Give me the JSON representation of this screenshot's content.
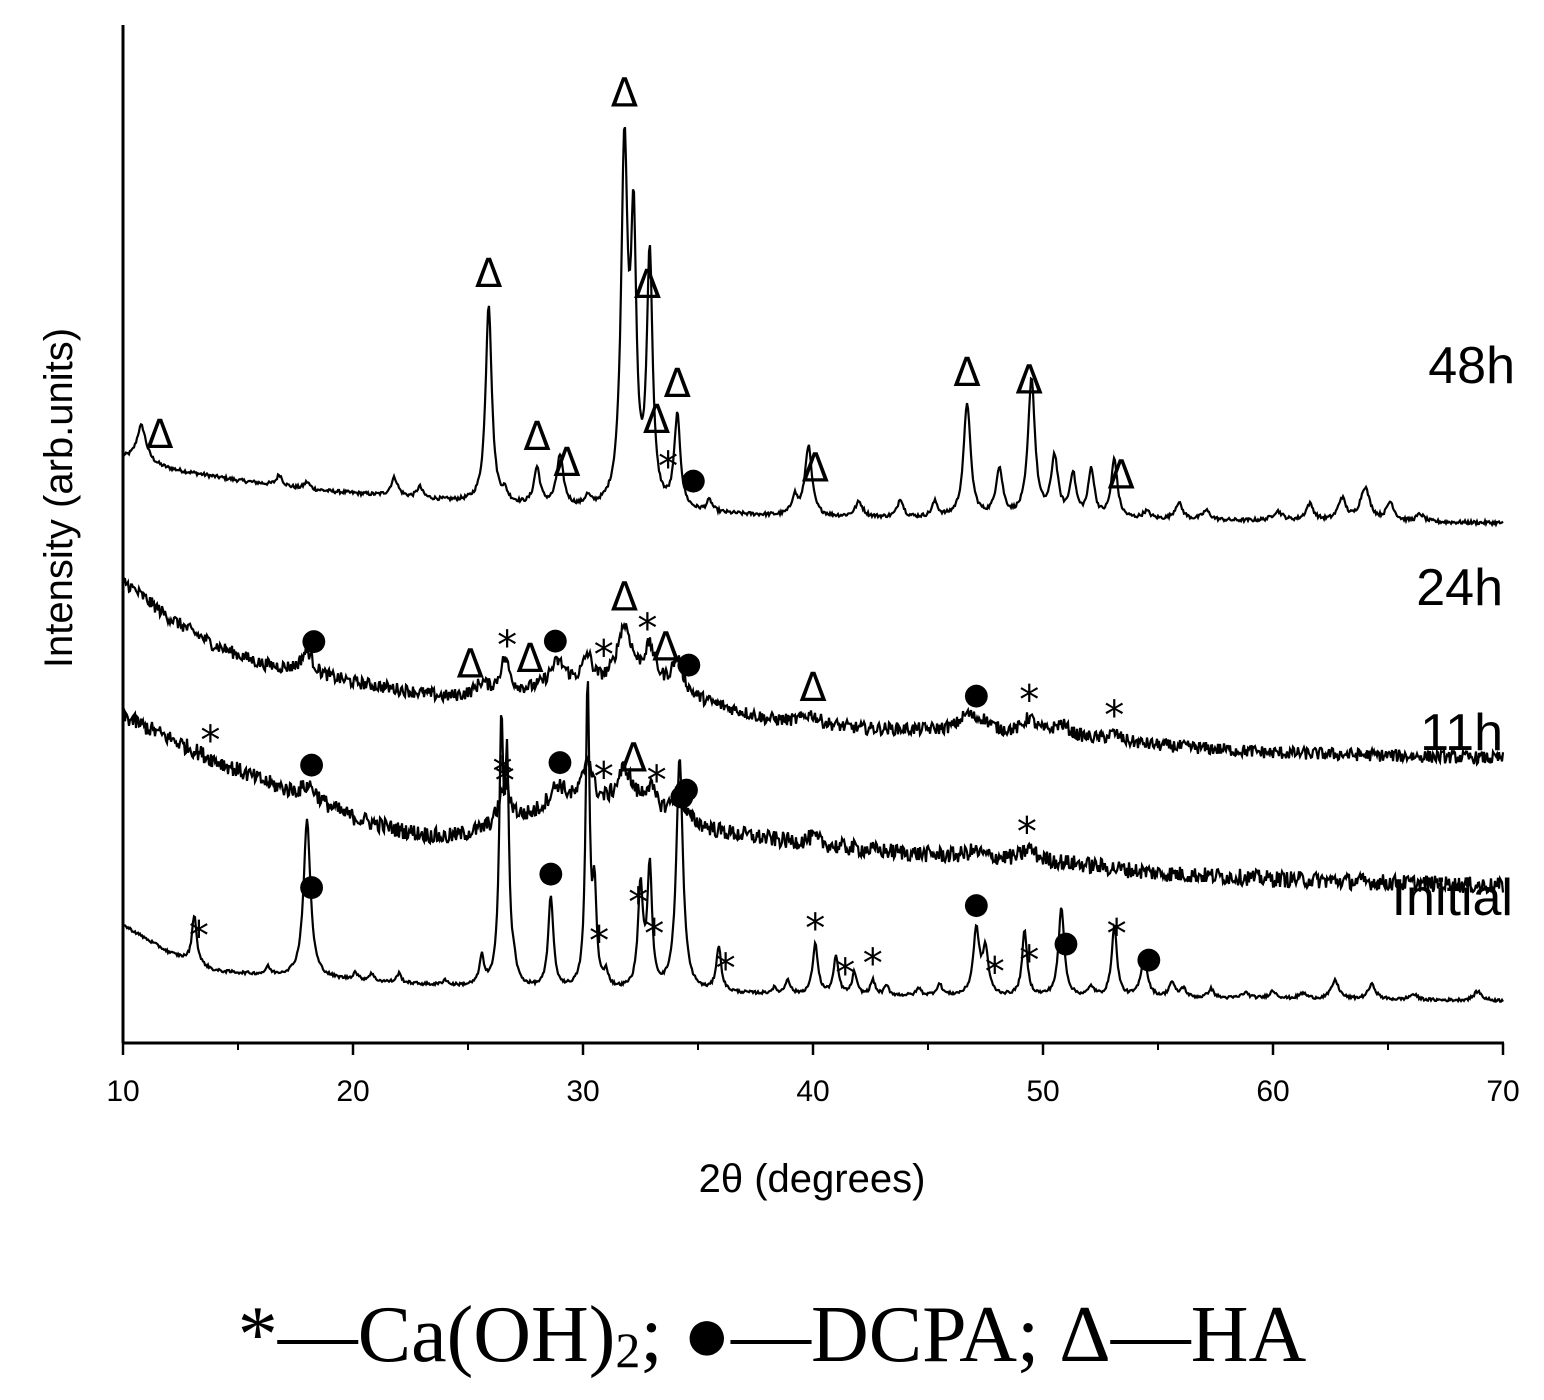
{
  "chart_data": {
    "type": "line",
    "xlabel": "2θ (degrees)",
    "ylabel": "Intensity (arb.units)",
    "xlim": [
      10,
      70
    ],
    "xticks": [
      10,
      20,
      30,
      40,
      50,
      60,
      70
    ],
    "grid": false,
    "series": [
      {
        "name": "48h",
        "noise": 0.1,
        "baseline": [
          [
            10,
            0.2
          ],
          [
            12,
            -0.4
          ],
          [
            15,
            -1.0
          ],
          [
            18,
            -1.5
          ],
          [
            22,
            -1.9
          ],
          [
            26,
            -2.3
          ],
          [
            30,
            -2.6
          ],
          [
            35,
            -2.8
          ],
          [
            40,
            -3.0
          ],
          [
            50,
            -3.1
          ],
          [
            60,
            -3.2
          ],
          [
            70,
            -3.3
          ]
        ],
        "peaks": [
          [
            10.8,
            2.0,
            0.25
          ],
          [
            16.8,
            0.6,
            0.15
          ],
          [
            18.0,
            0.4,
            0.15
          ],
          [
            21.8,
            1.0,
            0.18
          ],
          [
            22.9,
            0.6,
            0.15
          ],
          [
            25.9,
            10.8,
            0.16
          ],
          [
            26.6,
            0.5,
            0.15
          ],
          [
            28.0,
            2.0,
            0.16
          ],
          [
            29.0,
            2.7,
            0.18
          ],
          [
            30.2,
            0.5,
            0.15
          ],
          [
            31.8,
            19.2,
            0.17
          ],
          [
            32.2,
            14.0,
            0.14
          ],
          [
            32.9,
            13.5,
            0.15
          ],
          [
            34.1,
            5.0,
            0.16
          ],
          [
            35.5,
            0.6,
            0.15
          ],
          [
            39.2,
            1.0,
            0.15
          ],
          [
            39.8,
            3.8,
            0.18
          ],
          [
            42.0,
            0.8,
            0.2
          ],
          [
            43.8,
            1.0,
            0.15
          ],
          [
            45.3,
            0.8,
            0.15
          ],
          [
            46.7,
            6.2,
            0.18
          ],
          [
            48.1,
            2.6,
            0.18
          ],
          [
            49.5,
            7.5,
            0.18
          ],
          [
            50.5,
            3.2,
            0.18
          ],
          [
            51.3,
            2.3,
            0.16
          ],
          [
            52.1,
            2.6,
            0.16
          ],
          [
            53.1,
            3.2,
            0.16
          ],
          [
            54.5,
            0.4,
            0.2
          ],
          [
            55.9,
            0.9,
            0.2
          ],
          [
            57.1,
            0.5,
            0.2
          ],
          [
            60.2,
            0.5,
            0.25
          ],
          [
            61.6,
            0.9,
            0.2
          ],
          [
            63.0,
            1.2,
            0.2
          ],
          [
            64.0,
            1.8,
            0.25
          ],
          [
            65.1,
            1.0,
            0.2
          ],
          [
            66.4,
            0.4,
            0.2
          ]
        ]
      },
      {
        "name": "24h",
        "noise": 0.35,
        "baseline": [
          [
            10,
            0.5
          ],
          [
            12,
            -1.5
          ],
          [
            14,
            -3.0
          ],
          [
            16,
            -4.0
          ],
          [
            18,
            -4.5
          ],
          [
            20,
            -5.0
          ],
          [
            24,
            -5.8
          ],
          [
            27,
            -5.6
          ],
          [
            30,
            -5.3
          ],
          [
            33,
            -5.3
          ],
          [
            35,
            -6.0
          ],
          [
            38,
            -7.0
          ],
          [
            42,
            -7.5
          ],
          [
            46,
            -7.6
          ],
          [
            50,
            -7.8
          ],
          [
            55,
            -8.4
          ],
          [
            60,
            -8.8
          ],
          [
            70,
            -9.1
          ]
        ],
        "peaks": [
          [
            18.0,
            1.2,
            0.3
          ],
          [
            25.6,
            0.6,
            0.3
          ],
          [
            26.6,
            1.8,
            0.25
          ],
          [
            28.9,
            1.4,
            0.45
          ],
          [
            30.2,
            1.5,
            0.25
          ],
          [
            31.8,
            3.2,
            0.4
          ],
          [
            32.9,
            1.9,
            0.3
          ],
          [
            34.1,
            1.8,
            0.3
          ],
          [
            39.9,
            0.5,
            0.4
          ],
          [
            46.7,
            0.8,
            0.4
          ],
          [
            47.4,
            0.5,
            0.4
          ],
          [
            49.4,
            0.8,
            0.3
          ],
          [
            50.8,
            0.6,
            0.4
          ],
          [
            53.1,
            0.4,
            0.3
          ]
        ]
      },
      {
        "name": "11h",
        "noise": 0.45,
        "baseline": [
          [
            10,
            0.0
          ],
          [
            12,
            -1.2
          ],
          [
            14,
            -2.4
          ],
          [
            16,
            -3.5
          ],
          [
            18,
            -4.5
          ],
          [
            20,
            -5.5
          ],
          [
            22,
            -6.2
          ],
          [
            24,
            -6.6
          ],
          [
            26,
            -6.2
          ],
          [
            28,
            -5.5
          ],
          [
            30,
            -5.0
          ],
          [
            32,
            -5.0
          ],
          [
            34,
            -5.6
          ],
          [
            36,
            -6.3
          ],
          [
            40,
            -7.0
          ],
          [
            45,
            -7.5
          ],
          [
            50,
            -7.8
          ],
          [
            55,
            -8.5
          ],
          [
            60,
            -8.8
          ],
          [
            70,
            -9.2
          ]
        ],
        "peaks": [
          [
            18.1,
            0.8,
            0.4
          ],
          [
            26.6,
            2.2,
            0.3
          ],
          [
            28.9,
            1.4,
            0.5
          ],
          [
            30.2,
            2.5,
            0.25
          ],
          [
            31.8,
            2.0,
            0.4
          ],
          [
            32.9,
            1.2,
            0.3
          ],
          [
            34.1,
            1.3,
            0.3
          ],
          [
            40.0,
            0.4,
            0.4
          ],
          [
            47.0,
            0.3,
            0.4
          ],
          [
            49.4,
            0.6,
            0.3
          ]
        ]
      },
      {
        "name": "Initial",
        "noise": 0.08,
        "baseline": [
          [
            10,
            0.0
          ],
          [
            12,
            -1.5
          ],
          [
            14,
            -2.5
          ],
          [
            16,
            -2.7
          ],
          [
            20,
            -3.0
          ],
          [
            24,
            -3.3
          ],
          [
            28,
            -3.5
          ],
          [
            32,
            -3.6
          ],
          [
            36,
            -3.7
          ],
          [
            40,
            -3.8
          ],
          [
            50,
            -3.9
          ],
          [
            60,
            -4.0
          ],
          [
            70,
            -4.1
          ]
        ],
        "peaks": [
          [
            13.1,
            2.6,
            0.12
          ],
          [
            16.3,
            0.4,
            0.12
          ],
          [
            18.0,
            8.5,
            0.18
          ],
          [
            20.1,
            0.4,
            0.12
          ],
          [
            20.8,
            0.4,
            0.12
          ],
          [
            22.0,
            0.5,
            0.12
          ],
          [
            24.0,
            0.3,
            0.12
          ],
          [
            25.6,
            1.5,
            0.12
          ],
          [
            26.45,
            13.5,
            0.11
          ],
          [
            26.7,
            11.0,
            0.1
          ],
          [
            27.0,
            0.8,
            0.12
          ],
          [
            28.6,
            5.0,
            0.13
          ],
          [
            30.2,
            16.5,
            0.1
          ],
          [
            30.5,
            5.0,
            0.1
          ],
          [
            31.0,
            0.8,
            0.12
          ],
          [
            32.5,
            5.5,
            0.13
          ],
          [
            32.9,
            6.5,
            0.12
          ],
          [
            34.2,
            12.6,
            0.17
          ],
          [
            35.9,
            2.4,
            0.13
          ],
          [
            38.3,
            0.3,
            0.12
          ],
          [
            38.9,
            0.8,
            0.12
          ],
          [
            40.1,
            2.7,
            0.14
          ],
          [
            41.0,
            2.0,
            0.13
          ],
          [
            41.8,
            1.2,
            0.12
          ],
          [
            42.6,
            0.8,
            0.12
          ],
          [
            43.2,
            0.5,
            0.12
          ],
          [
            44.6,
            0.4,
            0.12
          ],
          [
            45.5,
            0.6,
            0.15
          ],
          [
            47.1,
            3.5,
            0.16
          ],
          [
            47.5,
            2.4,
            0.15
          ],
          [
            49.2,
            3.5,
            0.13
          ],
          [
            50.8,
            4.8,
            0.15
          ],
          [
            52.1,
            0.5,
            0.15
          ],
          [
            53.1,
            3.8,
            0.14
          ],
          [
            54.4,
            2.0,
            0.18
          ],
          [
            55.6,
            0.8,
            0.15
          ],
          [
            56.1,
            0.5,
            0.15
          ],
          [
            57.3,
            0.5,
            0.15
          ],
          [
            58.8,
            0.3,
            0.2
          ],
          [
            60.0,
            0.4,
            0.2
          ],
          [
            61.3,
            0.3,
            0.2
          ],
          [
            62.7,
            1.0,
            0.2
          ],
          [
            64.3,
            0.8,
            0.2
          ],
          [
            66.1,
            0.3,
            0.2
          ],
          [
            68.9,
            0.5,
            0.2
          ]
        ]
      }
    ],
    "markers": {
      "48h": [
        {
          "symbol": "Δ",
          "x": 11.6
        },
        {
          "symbol": "Δ",
          "x": 25.9
        },
        {
          "symbol": "Δ",
          "x": 28.0
        },
        {
          "symbol": "Δ",
          "x": 29.3
        },
        {
          "symbol": "Δ",
          "x": 31.8
        },
        {
          "symbol": "Δ",
          "x": 32.8
        },
        {
          "symbol": "Δ",
          "x": 33.2
        },
        {
          "symbol": "Δ",
          "x": 34.1
        },
        {
          "symbol": "*",
          "x": 33.7
        },
        {
          "symbol": "●",
          "x": 34.8
        },
        {
          "symbol": "Δ",
          "x": 40.1
        },
        {
          "symbol": "Δ",
          "x": 46.7
        },
        {
          "symbol": "Δ",
          "x": 49.4
        },
        {
          "symbol": "Δ",
          "x": 53.4
        }
      ],
      "24h": [
        {
          "symbol": "●",
          "x": 18.3
        },
        {
          "symbol": "Δ",
          "x": 25.1
        },
        {
          "symbol": "*",
          "x": 26.7
        },
        {
          "symbol": "Δ",
          "x": 27.7
        },
        {
          "symbol": "●",
          "x": 28.8
        },
        {
          "symbol": "*",
          "x": 30.9
        },
        {
          "symbol": "Δ",
          "x": 31.8
        },
        {
          "symbol": "*",
          "x": 32.8
        },
        {
          "symbol": "Δ",
          "x": 33.6
        },
        {
          "symbol": "●",
          "x": 34.6
        },
        {
          "symbol": "Δ",
          "x": 40.0
        },
        {
          "symbol": "●",
          "x": 47.1
        },
        {
          "symbol": "*",
          "x": 49.4
        },
        {
          "symbol": "*",
          "x": 53.1
        }
      ],
      "11h": [
        {
          "symbol": "*",
          "x": 13.8
        },
        {
          "symbol": "●",
          "x": 18.2
        },
        {
          "symbol": "*",
          "x": 26.5
        },
        {
          "symbol": "●",
          "x": 29.0
        },
        {
          "symbol": "*",
          "x": 30.9
        },
        {
          "symbol": "Δ",
          "x": 32.2
        },
        {
          "symbol": "*",
          "x": 33.2
        },
        {
          "symbol": "●",
          "x": 34.5
        },
        {
          "symbol": "*",
          "x": 49.3
        }
      ],
      "Initial": [
        {
          "symbol": "*",
          "x": 13.3
        },
        {
          "symbol": "●",
          "x": 18.2
        },
        {
          "symbol": "*",
          "x": 26.6
        },
        {
          "symbol": "●",
          "x": 28.6
        },
        {
          "symbol": "*",
          "x": 30.7
        },
        {
          "symbol": "*",
          "x": 32.4
        },
        {
          "symbol": "*",
          "x": 33.1
        },
        {
          "symbol": "●",
          "x": 34.3
        },
        {
          "symbol": "*",
          "x": 36.2
        },
        {
          "symbol": "*",
          "x": 40.1
        },
        {
          "symbol": "*",
          "x": 41.4
        },
        {
          "symbol": "*",
          "x": 42.6
        },
        {
          "symbol": "●",
          "x": 47.1
        },
        {
          "symbol": "*",
          "x": 47.9
        },
        {
          "symbol": "*",
          "x": 49.4
        },
        {
          "symbol": "●",
          "x": 51.0
        },
        {
          "symbol": "*",
          "x": 53.2
        },
        {
          "symbol": "●",
          "x": 54.6
        }
      ]
    },
    "legend": {
      "entries": [
        {
          "symbol": "*",
          "dash": "—",
          "label": "Ca(OH)",
          "subscript": "2",
          "sep": ";"
        },
        {
          "symbol": "●",
          "dash": "—",
          "label": "DCPA",
          "subscript": "",
          "sep": ";"
        },
        {
          "symbol": "Δ",
          "dash": "—",
          "label": "HA",
          "subscript": "",
          "sep": ""
        }
      ]
    }
  }
}
